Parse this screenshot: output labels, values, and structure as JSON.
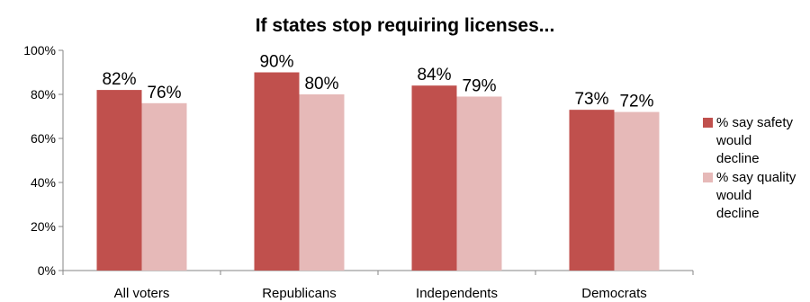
{
  "chart_data": {
    "type": "bar",
    "title": "If states stop requiring licenses...",
    "categories": [
      "All voters",
      "Republicans",
      "Independents",
      "Democrats"
    ],
    "series": [
      {
        "name": "% say safety would decline",
        "values": [
          82,
          90,
          84,
          73
        ],
        "color": "#c0504d",
        "labels": [
          "82%",
          "90%",
          "84%",
          "73%"
        ]
      },
      {
        "name": "% say quality would decline",
        "values": [
          76,
          80,
          79,
          72
        ],
        "color": "#e6b9b8",
        "labels": [
          "76%",
          "80%",
          "79%",
          "72%"
        ]
      }
    ],
    "yticks": [
      "0%",
      "20%",
      "40%",
      "60%",
      "80%",
      "100%"
    ],
    "ylim": [
      0,
      100
    ],
    "grid": false,
    "legend_position": "right"
  }
}
